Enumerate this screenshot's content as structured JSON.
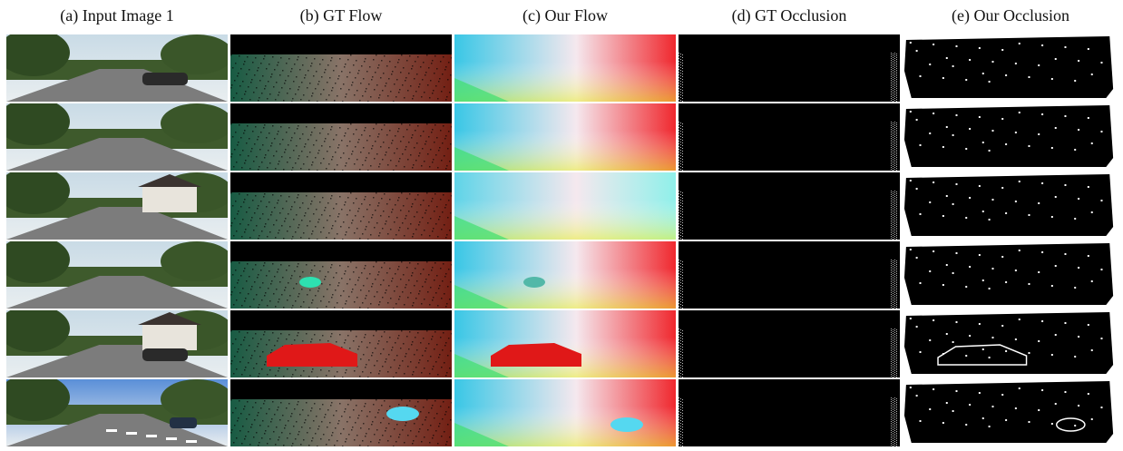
{
  "columns": [
    {
      "label": "(a) Input Image 1",
      "kind": "input"
    },
    {
      "label": "(b) GT Flow",
      "kind": "gtflow"
    },
    {
      "label": "(c) Our Flow",
      "kind": "ourflow"
    },
    {
      "label": "(d) GT Occlusion",
      "kind": "gtocc"
    },
    {
      "label": "(e) Our Occlusion",
      "kind": "ourocc"
    }
  ],
  "rows": [
    {
      "scene": "road-with-parked-cars",
      "flow_tint": "#d04a2a"
    },
    {
      "scene": "highway-underpass",
      "flow_tint": "#25b58a"
    },
    {
      "scene": "residential-street",
      "flow_tint": "#2fd4c8"
    },
    {
      "scene": "tree-lined-street",
      "flow_tint": "#2ea35c"
    },
    {
      "scene": "village-car",
      "flow_tint": "#e01818"
    },
    {
      "scene": "wide-road-lane-markings",
      "flow_tint": "#3ac8e0"
    }
  ]
}
